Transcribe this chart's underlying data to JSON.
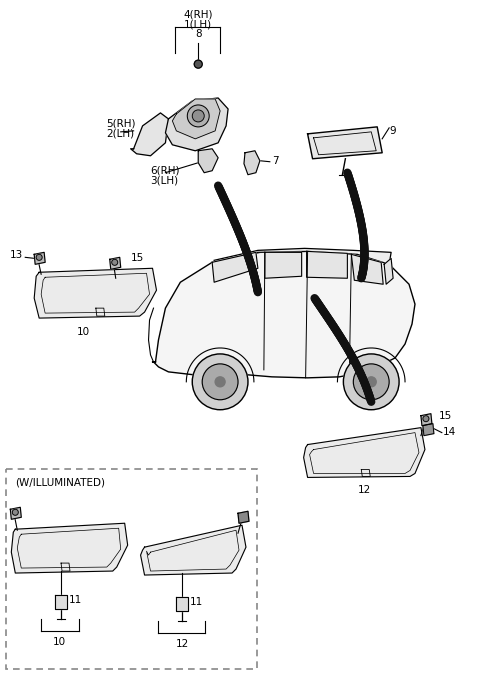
{
  "bg_color": "#ffffff",
  "figsize": [
    4.8,
    6.78
  ],
  "dpi": 100,
  "labels": {
    "top_rh": "4(RH)",
    "top_lh": "1(LH)",
    "label_8": "8",
    "label_5rh": "5(RH)",
    "label_2lh": "2(LH)",
    "label_6rh": "6(RH)",
    "label_3lh": "3(LH)",
    "label_7": "7",
    "label_9": "9",
    "label_13": "13",
    "label_15a": "15",
    "label_10a": "10",
    "label_14": "14",
    "label_15b": "15",
    "label_12a": "12",
    "illuminated": "(W/ILLUMINATED)",
    "label_11a": "11",
    "label_10b": "10",
    "label_11b": "11",
    "label_12b": "12"
  },
  "line_color": "#000000",
  "text_color": "#000000",
  "dashed_box_color": "#888888"
}
